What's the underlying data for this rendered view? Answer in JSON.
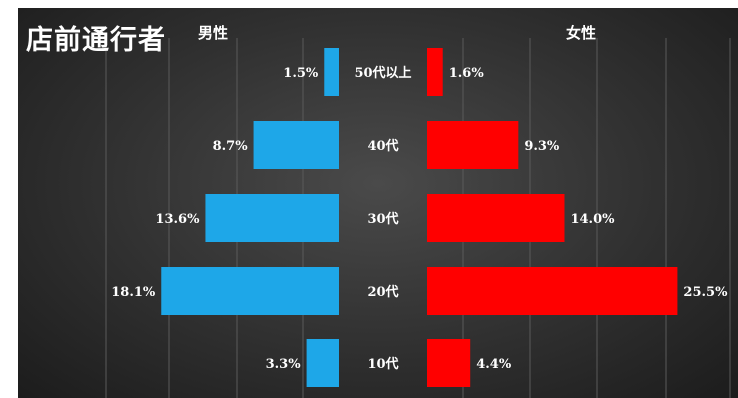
{
  "title": "店前通行者",
  "male_label": "男性",
  "female_label": "女性",
  "chart_data": {
    "type": "bar",
    "orientation": "horizontal-pyramid",
    "categories": [
      "50代以上",
      "40代",
      "30代",
      "20代",
      "10代"
    ],
    "series": [
      {
        "name": "男性",
        "values": [
          1.5,
          8.7,
          13.6,
          18.1,
          3.3
        ],
        "labels": [
          "1.5%",
          "8.7%",
          "13.6%",
          "18.1%",
          "3.3%"
        ],
        "color": "#1ea7e8"
      },
      {
        "name": "女性",
        "values": [
          1.6,
          9.3,
          14.0,
          25.5,
          4.4
        ],
        "labels": [
          "1.6%",
          "9.3%",
          "14.0%",
          "25.5%",
          "4.4%"
        ],
        "color": "#ff0000"
      }
    ],
    "grid": true,
    "background": "#333333"
  }
}
